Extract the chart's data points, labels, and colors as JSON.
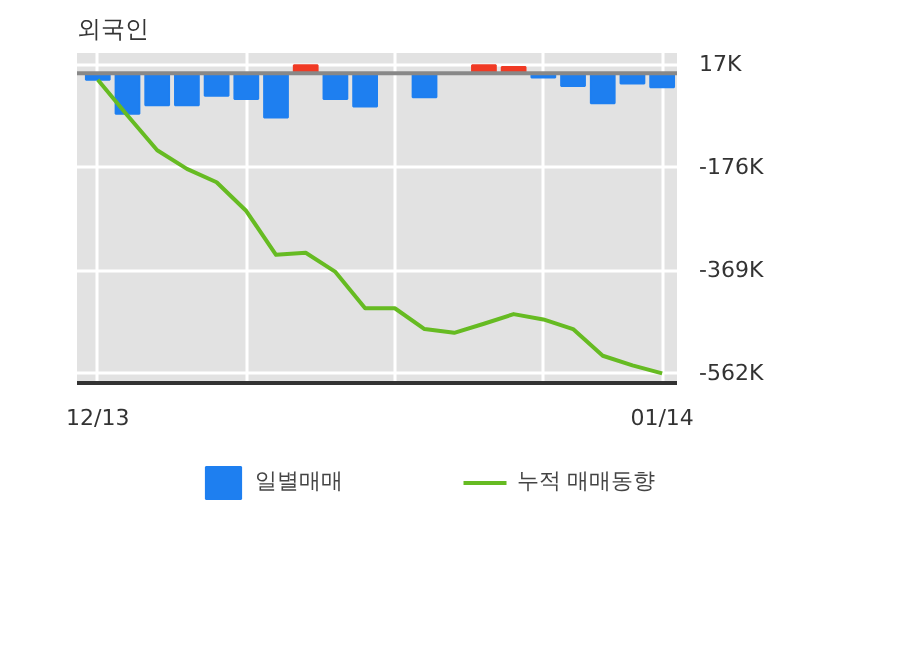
{
  "chart_data": {
    "type": "bar",
    "title": "외국인",
    "categories": [
      "12/13",
      null,
      null,
      null,
      null,
      null,
      null,
      null,
      null,
      null,
      null,
      null,
      null,
      null,
      null,
      null,
      null,
      null,
      null,
      "01/14"
    ],
    "series": [
      {
        "name": "일별매매",
        "colors": [
          "#1e7ff0",
          "#1e7ff0",
          "#1e7ff0",
          "#1e7ff0",
          "#1e7ff0",
          "#1e7ff0",
          "#1e7ff0",
          "#f03a24",
          "#1e7ff0",
          "#1e7ff0",
          "#1e7ff0",
          "#1e7ff0",
          "#1e7ff0",
          "#f03a24",
          "#f03a24",
          "#1e7ff0",
          "#1e7ff0",
          "#1e7ff0",
          "#1e7ff0",
          "#1e7ff0"
        ],
        "values": [
          -12,
          -76,
          -60,
          -60,
          -42,
          -48,
          -83,
          15,
          -48,
          -62,
          0,
          -45,
          0,
          15,
          12,
          -8,
          -24,
          -56,
          -19,
          -26
        ]
      },
      {
        "name": "누적 매매동향",
        "type": "line",
        "color": "#66bb22",
        "values": [
          -12,
          -79,
          -144,
          -179,
          -204,
          -258,
          -340,
          -336,
          -372,
          -440,
          -440,
          -479,
          -486,
          -469,
          -451,
          -461,
          -479,
          -529,
          -547,
          -562
        ]
      }
    ],
    "ylim": [
      -580,
      38
    ],
    "yticks": [
      {
        "value": 17,
        "label": "17K"
      },
      {
        "value": -176,
        "label": "-176K"
      },
      {
        "value": -369,
        "label": "-369K"
      },
      {
        "value": -562,
        "label": "-562K"
      }
    ],
    "grid": true,
    "legend": "bottom"
  }
}
